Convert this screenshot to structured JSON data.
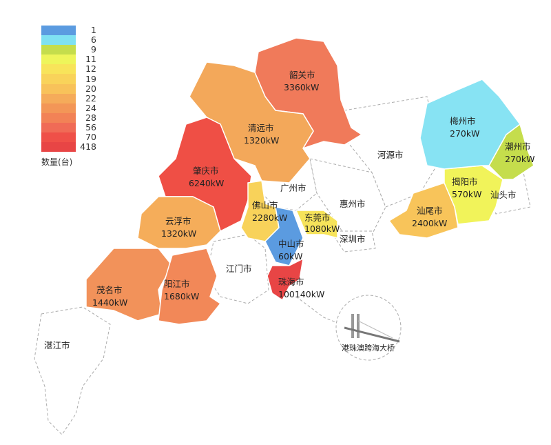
{
  "legend": {
    "title": "数量(台)",
    "items": [
      {
        "label": "1",
        "color": "#5b9be0"
      },
      {
        "label": "6",
        "color": "#7fe1f2"
      },
      {
        "label": "9",
        "color": "#c5dd4c"
      },
      {
        "label": "11",
        "color": "#eef55a"
      },
      {
        "label": "12",
        "color": "#f8e45a"
      },
      {
        "label": "19",
        "color": "#f9d35a"
      },
      {
        "label": "20",
        "color": "#f8c25a"
      },
      {
        "label": "22",
        "color": "#f5ab5a"
      },
      {
        "label": "24",
        "color": "#f39657"
      },
      {
        "label": "28",
        "color": "#f28256"
      },
      {
        "label": "56",
        "color": "#f06b56"
      },
      {
        "label": "70",
        "color": "#ef5048"
      },
      {
        "label": "418",
        "color": "#e84545"
      }
    ]
  },
  "regions": [
    {
      "name": "韶关市",
      "value": "3360kW",
      "color": "#f07a5a"
    },
    {
      "name": "清远市",
      "value": "1320kW",
      "color": "#f3a85a"
    },
    {
      "name": "肇庆市",
      "value": "6240kW",
      "color": "#ef4f45"
    },
    {
      "name": "云浮市",
      "value": "1320kW",
      "color": "#f5ad5a"
    },
    {
      "name": "茂名市",
      "value": "1440kW",
      "color": "#f2925a"
    },
    {
      "name": "阳江市",
      "value": "1680kW",
      "color": "#f28858"
    },
    {
      "name": "佛山市",
      "value": "2280kW",
      "color": "#f8d25a"
    },
    {
      "name": "中山市",
      "value": "60kW",
      "color": "#5b9be0"
    },
    {
      "name": "珠海市",
      "value": "100140kW",
      "color": "#e84545"
    },
    {
      "name": "东莞市",
      "value": "1080kW",
      "color": "#f6e35a"
    },
    {
      "name": "汕尾市",
      "value": "2400kW",
      "color": "#f8c45a"
    },
    {
      "name": "揭阳市",
      "value": "570kW",
      "color": "#f1f35a"
    },
    {
      "name": "潮州市",
      "value": "270kW",
      "color": "#c5dd4c"
    },
    {
      "name": "梅州市",
      "value": "270kW",
      "color": "#87e3f3"
    }
  ],
  "unlabeled_regions": [
    "广州市",
    "惠州市",
    "河源市",
    "深圳市",
    "江门市",
    "湛江市",
    "汕头市"
  ],
  "bridge_label": "港珠澳跨海大桥"
}
